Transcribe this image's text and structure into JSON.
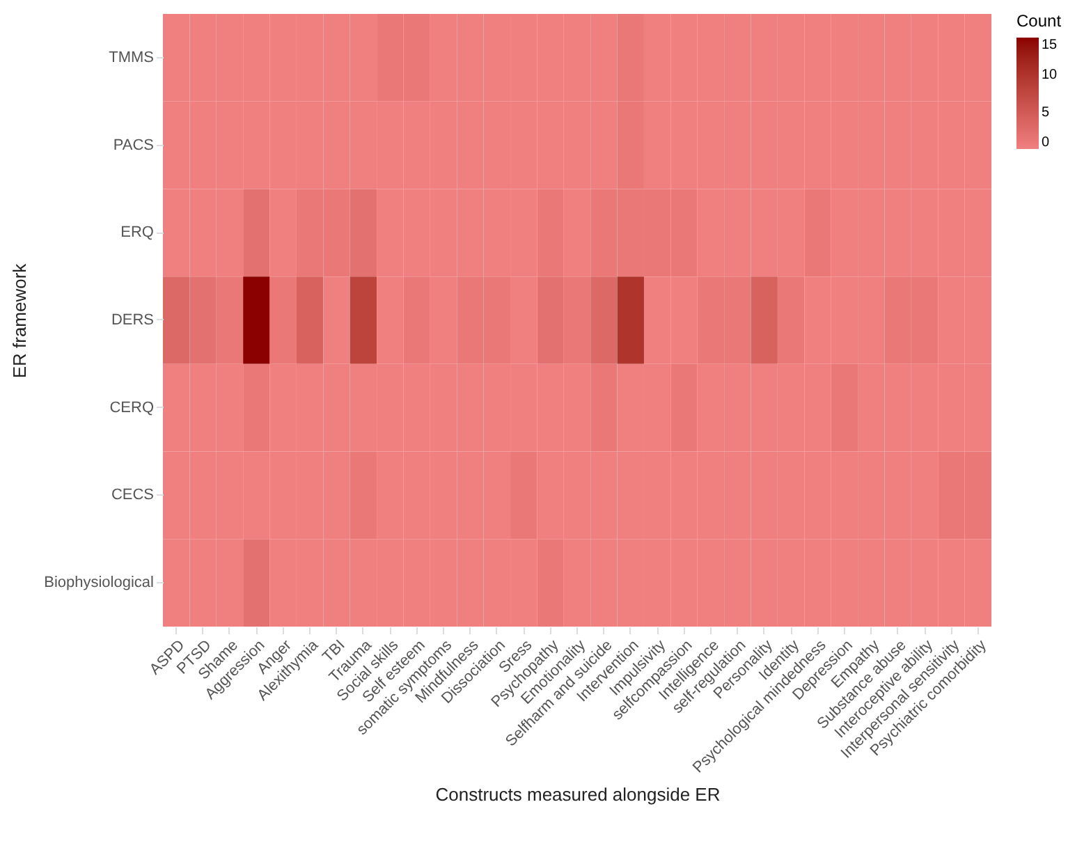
{
  "chart_data": {
    "type": "heatmap",
    "xlabel": "Constructs measured alongside ER",
    "ylabel": "ER framework",
    "clabel": "Count",
    "categories": [
      "ASPD",
      "PTSD",
      "Shame",
      "Aggression",
      "Anger",
      "Alexithymia",
      "TBI",
      "Trauma",
      "Social skills",
      "Self esteem",
      "somatic symptoms",
      "Mindfulness",
      "Dissociation",
      "Sress",
      "Psychopathy",
      "Emotionality",
      "Selfharm and suicide",
      "Intervention",
      "Impulsivity",
      "selfcompassion",
      "Intelligence",
      "self-regulation",
      "Personality",
      "Identity",
      "Psychological mindedness",
      "Depression",
      "Empathy",
      "Substance abuse",
      "Interoceptive ability",
      "Interpersonal sensitivity",
      "Psychiatric comorbidity"
    ],
    "y_categories": [
      "TMMS",
      "PACS",
      "ERQ",
      "DERS",
      "CERQ",
      "CECS",
      "Biophysiological"
    ],
    "cells": [
      [
        0,
        0,
        0,
        0,
        0,
        0,
        0,
        0,
        1,
        1,
        0,
        0,
        0,
        0,
        0,
        0,
        0,
        1,
        0,
        0,
        0,
        0,
        0,
        0,
        0,
        0,
        0,
        0,
        0,
        0,
        0
      ],
      [
        0,
        0,
        0,
        0,
        0,
        0,
        0,
        0,
        0,
        0,
        0,
        0,
        0,
        0,
        0,
        0,
        0,
        1,
        0,
        0,
        0,
        0,
        0,
        0,
        0,
        0,
        0,
        0,
        0,
        0,
        0
      ],
      [
        0,
        0,
        0,
        2,
        0,
        1,
        1,
        2,
        0,
        0,
        0,
        0,
        0,
        0,
        1,
        0,
        1,
        1,
        1,
        1,
        0,
        0,
        0,
        0,
        1,
        0,
        0,
        0,
        0,
        0,
        0
      ],
      [
        3,
        2,
        1,
        15,
        1,
        4,
        0,
        8,
        0,
        1,
        0,
        1,
        1,
        0,
        2,
        1,
        3,
        10,
        0,
        0,
        1,
        1,
        4,
        1,
        0,
        0,
        0,
        1,
        1,
        0,
        0
      ],
      [
        0,
        0,
        0,
        1,
        0,
        0,
        0,
        0,
        0,
        0,
        0,
        0,
        0,
        0,
        0,
        0,
        1,
        0,
        0,
        1,
        0,
        0,
        0,
        0,
        0,
        1,
        0,
        0,
        0,
        0,
        0
      ],
      [
        0,
        0,
        0,
        0,
        0,
        0,
        0,
        1,
        0,
        0,
        0,
        0,
        0,
        1,
        0,
        0,
        0,
        0,
        0,
        0,
        0,
        0,
        0,
        0,
        0,
        0,
        0,
        0,
        0,
        1,
        1
      ],
      [
        0,
        0,
        0,
        2,
        0,
        0,
        0,
        0,
        0,
        0,
        0,
        0,
        0,
        0,
        1,
        0,
        0,
        0,
        0,
        0,
        0,
        0,
        0,
        0,
        0,
        0,
        0,
        0,
        0,
        0,
        0
      ]
    ],
    "clim": [
      0,
      15
    ],
    "cticks": [
      0,
      5,
      10,
      15
    ]
  }
}
